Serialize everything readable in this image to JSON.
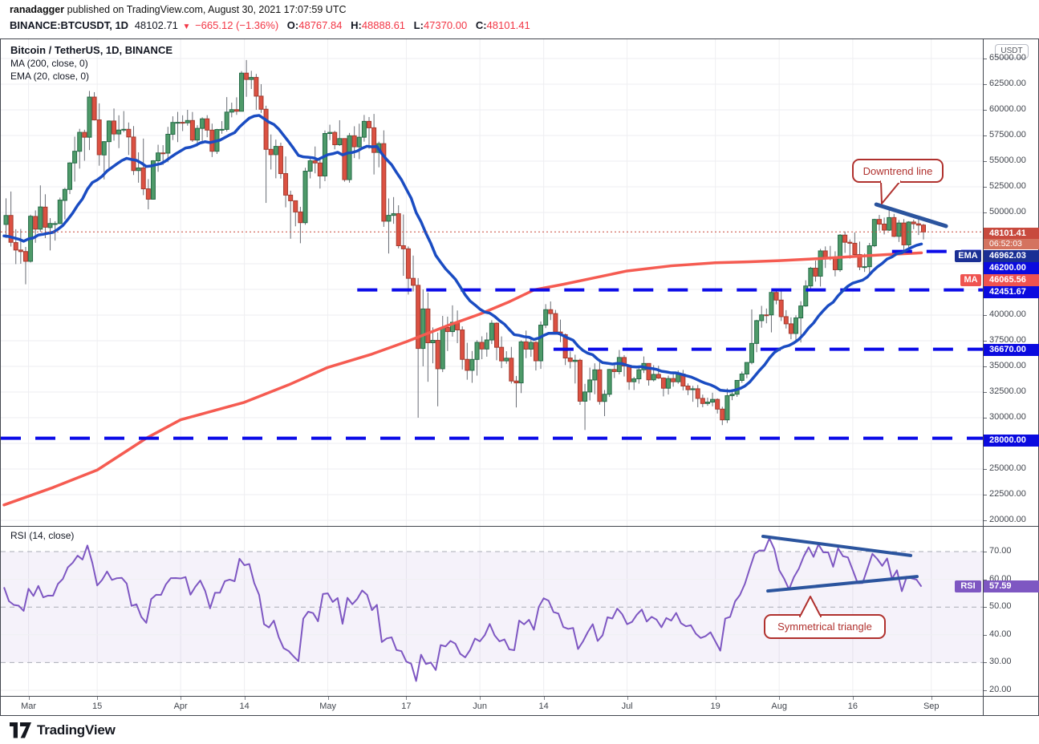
{
  "header": {
    "author": "ranadagger",
    "published": "published on TradingView.com, August 30, 2021 17:07:59 UTC",
    "symbol": "BINANCE:BTCUSDT, 1D",
    "last": "48102.71",
    "direction": "▼",
    "change": "−665.12 (−1.36%)",
    "open_label": "O:",
    "open": "48767.84",
    "high_label": "H:",
    "high": "48888.61",
    "low_label": "L:",
    "low": "47370.00",
    "close_label": "C:",
    "close": "48101.41"
  },
  "legend": {
    "title": "Bitcoin / TetherUS, 1D, BINANCE",
    "ma": "MA (200, close, 0)",
    "ema": "EMA (20, close, 0)"
  },
  "rsi_panel": {
    "legend": "RSI (14, close)",
    "tag": "RSI",
    "value": "57.59"
  },
  "annotations": {
    "downtrend": "Downtrend line",
    "triangle": "Symmetrical triangle"
  },
  "price_axis": {
    "currency": "USDT"
  },
  "price_labels": {
    "last_price": "48101.41",
    "countdown": "06:52:03",
    "ema_tag": "EMA",
    "ema_value": "46962.03",
    "level_46200": "46200.00",
    "ma_tag": "MA",
    "ma_value": "46065.56",
    "level_42451": "42451.67",
    "level_36670": "36670.00",
    "level_28000": "28000.00",
    "rsi_value": "57.59"
  },
  "footer": {
    "brand": "TradingView"
  },
  "chart_data": {
    "type": "candlestick",
    "title": "Bitcoin / TetherUS, 1D, BINANCE",
    "symbol": "BINANCE:BTCUSDT",
    "interval": "1D",
    "start_date": "2021-02-24",
    "last_price": 48101.41,
    "ema_period": 20,
    "ma_period": 200,
    "rsi": {
      "period": 14,
      "source": "close",
      "last": 57.59,
      "overbought": 70,
      "oversold": 30,
      "ticks": [
        70,
        60,
        50,
        40,
        30,
        20
      ],
      "ylim": [
        17.5,
        78.5
      ]
    },
    "price_axis": {
      "min_visible": 20000,
      "max_visible": 65000,
      "tick_step": 2500,
      "ylim": [
        19400,
        66875
      ]
    },
    "time_axis_labels": [
      {
        "label": "Mar",
        "index": 5
      },
      {
        "label": "15",
        "index": 19
      },
      {
        "label": "Apr",
        "index": 36
      },
      {
        "label": "14",
        "index": 49
      },
      {
        "label": "May",
        "index": 66
      },
      {
        "label": "17",
        "index": 82
      },
      {
        "label": "Jun",
        "index": 97
      },
      {
        "label": "14",
        "index": 110
      },
      {
        "label": "Jul",
        "index": 127
      },
      {
        "label": "19",
        "index": 145
      },
      {
        "label": "Aug",
        "index": 158
      },
      {
        "label": "16",
        "index": 173
      },
      {
        "label": "Sep",
        "index": 189
      }
    ],
    "horizontal_levels": [
      {
        "price": 46200,
        "from_index": 181
      },
      {
        "price": 42451.67,
        "from_index": 72
      },
      {
        "price": 36670,
        "from_index": 112
      },
      {
        "price": 28000,
        "from_index": -2
      }
    ],
    "drawings": {
      "downtrend_line": {
        "x1_index": 177.8,
        "price1": 50780,
        "x2_index": 192,
        "price2": 48670
      },
      "rsi_upper_trendline": {
        "x1_index": 154.7,
        "v1": 75.5,
        "x2_index": 184.8,
        "v2": 68.6
      },
      "rsi_lower_trendline": {
        "x1_index": 155.7,
        "v1": 55.8,
        "x2_index": 186.1,
        "v2": 61.0
      }
    },
    "ma200_anchors": [
      [
        0,
        21500
      ],
      [
        10,
        23200
      ],
      [
        19,
        24900
      ],
      [
        29,
        28000
      ],
      [
        36,
        29800
      ],
      [
        49,
        31500
      ],
      [
        58,
        33200
      ],
      [
        66,
        34900
      ],
      [
        75,
        36200
      ],
      [
        82,
        37400
      ],
      [
        90,
        38900
      ],
      [
        97,
        40100
      ],
      [
        103,
        41300
      ],
      [
        108,
        42450
      ],
      [
        114,
        43000
      ],
      [
        120,
        43600
      ],
      [
        127,
        44300
      ],
      [
        136,
        44800
      ],
      [
        145,
        45100
      ],
      [
        152,
        45200
      ],
      [
        158,
        45300
      ],
      [
        166,
        45500
      ],
      [
        173,
        45700
      ],
      [
        180,
        45900
      ],
      [
        187,
        46066
      ]
    ],
    "candles": [
      [
        48835,
        51374,
        47522,
        49705
      ],
      [
        49709,
        52041,
        46674,
        47093
      ],
      [
        47063,
        48370,
        44967,
        46339
      ],
      [
        46340,
        48394,
        45000,
        46188
      ],
      [
        46194,
        46638,
        43000,
        45240
      ],
      [
        45240,
        49784,
        45115,
        49631
      ],
      [
        49612,
        50200,
        47047,
        48378
      ],
      [
        48374,
        52640,
        48100,
        50538
      ],
      [
        50522,
        51773,
        47500,
        48561
      ],
      [
        48527,
        49448,
        46300,
        48927
      ],
      [
        48899,
        49147,
        47257,
        48912
      ],
      [
        48918,
        51450,
        48909,
        51206
      ],
      [
        51174,
        52402,
        49328,
        52246
      ],
      [
        52246,
        54895,
        51789,
        54824
      ],
      [
        54824,
        57387,
        53005,
        55963
      ],
      [
        55963,
        58150,
        54272,
        57805
      ],
      [
        57805,
        58063,
        55040,
        57332
      ],
      [
        57332,
        61844,
        56078,
        61243
      ],
      [
        61243,
        61724,
        58966,
        59018
      ],
      [
        59018,
        60633,
        54555,
        55629
      ],
      [
        55605,
        56950,
        53221,
        56900
      ],
      [
        56900,
        58974,
        54123,
        58912
      ],
      [
        58912,
        60129,
        57000,
        57648
      ],
      [
        57648,
        59468,
        56270,
        58030
      ],
      [
        58030,
        59880,
        57820,
        58102
      ],
      [
        58102,
        58767,
        55601,
        57358
      ],
      [
        57351,
        58419,
        53650,
        54083
      ],
      [
        54083,
        55858,
        52900,
        54340
      ],
      [
        54340,
        57200,
        51686,
        52302
      ],
      [
        52302,
        53250,
        50305,
        51293
      ],
      [
        51293,
        55100,
        51250,
        55033
      ],
      [
        55033,
        56600,
        53962,
        55801
      ],
      [
        55801,
        56559,
        54630,
        55778
      ],
      [
        55778,
        58342,
        54900,
        57619
      ],
      [
        57619,
        59368,
        57055,
        58771
      ],
      [
        58771,
        59800,
        56855,
        58779
      ],
      [
        58779,
        59469,
        57930,
        58735
      ],
      [
        58735,
        60000,
        58464,
        58960
      ],
      [
        58960,
        59790,
        56880,
        57058
      ],
      [
        57058,
        58500,
        56450,
        58192
      ],
      [
        58192,
        59272,
        56828,
        59123
      ],
      [
        59123,
        59480,
        57333,
        58025
      ],
      [
        58025,
        58656,
        55400,
        55963
      ],
      [
        55963,
        58150,
        55700,
        58083
      ],
      [
        58083,
        58900,
        57667,
        58096
      ],
      [
        58096,
        61240,
        57900,
        59778
      ],
      [
        59778,
        60700,
        59269,
        60020
      ],
      [
        60020,
        61219,
        59510,
        59863
      ],
      [
        59863,
        63777,
        59853,
        63576
      ],
      [
        63576,
        64854,
        61270,
        62959
      ],
      [
        62959,
        63800,
        62030,
        63159
      ],
      [
        63159,
        63500,
        60000,
        61334
      ],
      [
        61334,
        62500,
        59700,
        60058
      ],
      [
        60058,
        60400,
        50931,
        56150
      ],
      [
        56150,
        57600,
        54187,
        55633
      ],
      [
        55633,
        57100,
        53329,
        56436
      ],
      [
        56436,
        56800,
        53300,
        53787
      ],
      [
        53787,
        55459,
        50500,
        51690
      ],
      [
        51690,
        52120,
        47440,
        51139
      ],
      [
        51139,
        51167,
        48650,
        50050
      ],
      [
        50050,
        50550,
        47000,
        49004
      ],
      [
        49004,
        54356,
        48800,
        54021
      ],
      [
        54021,
        55440,
        53319,
        55033
      ],
      [
        55033,
        56428,
        53813,
        54824
      ],
      [
        54824,
        55195,
        52330,
        53555
      ],
      [
        53555,
        57990,
        53050,
        57694
      ],
      [
        57694,
        58550,
        57050,
        57800
      ],
      [
        57800,
        57952,
        56150,
        56600
      ],
      [
        56600,
        58986,
        56483,
        57200
      ],
      [
        57200,
        57215,
        53000,
        53200
      ],
      [
        53200,
        57750,
        52900,
        57473
      ],
      [
        57473,
        58400,
        55300,
        56400
      ],
      [
        56400,
        58650,
        55200,
        57332
      ],
      [
        57332,
        59500,
        56900,
        58877
      ],
      [
        58877,
        59300,
        56216,
        58250
      ],
      [
        58250,
        59600,
        53700,
        55847
      ],
      [
        55847,
        56900,
        54400,
        56704
      ],
      [
        56704,
        58000,
        48600,
        49150
      ],
      [
        49150,
        51367,
        46000,
        49716
      ],
      [
        49716,
        51500,
        48896,
        49880
      ],
      [
        49880,
        50700,
        46500,
        46760
      ],
      [
        46760,
        49800,
        43825,
        46456
      ],
      [
        46456,
        46686,
        42001,
        43580
      ],
      [
        43580,
        45800,
        42300,
        42900
      ],
      [
        42900,
        43600,
        30000,
        36750
      ],
      [
        36750,
        42500,
        35000,
        40596
      ],
      [
        40596,
        42200,
        33500,
        37304
      ],
      [
        37304,
        38800,
        35300,
        37536
      ],
      [
        37536,
        38300,
        31111,
        34770
      ],
      [
        34770,
        39920,
        34445,
        38796
      ],
      [
        38796,
        39850,
        36500,
        38392
      ],
      [
        38392,
        40950,
        37900,
        39294
      ],
      [
        39294,
        40450,
        37263,
        38556
      ],
      [
        38556,
        38900,
        34700,
        35684
      ],
      [
        35684,
        37300,
        33700,
        34616
      ],
      [
        34616,
        36500,
        33400,
        35678
      ],
      [
        35678,
        37550,
        34100,
        37341
      ],
      [
        37341,
        37930,
        35700,
        36694
      ],
      [
        36694,
        38300,
        35945,
        37575
      ],
      [
        37575,
        39500,
        37180,
        39208
      ],
      [
        39208,
        39290,
        35600,
        36860
      ],
      [
        36860,
        37920,
        34833,
        35538
      ],
      [
        35538,
        36480,
        35258,
        35798
      ],
      [
        35798,
        36900,
        33333,
        33577
      ],
      [
        33577,
        34068,
        31000,
        33393
      ],
      [
        33393,
        37534,
        32400,
        37388
      ],
      [
        37388,
        38490,
        35800,
        36680
      ],
      [
        36680,
        37680,
        35936,
        37338
      ],
      [
        37338,
        37451,
        34600,
        35546
      ],
      [
        35546,
        39380,
        34757,
        39020
      ],
      [
        39020,
        41064,
        38730,
        40525
      ],
      [
        40525,
        41330,
        39506,
        40144
      ],
      [
        40144,
        40500,
        38116,
        38349
      ],
      [
        38349,
        39559,
        37365,
        38092
      ],
      [
        38092,
        38202,
        35129,
        35819
      ],
      [
        35819,
        36457,
        34803,
        35483
      ],
      [
        35483,
        36138,
        33336,
        35600
      ],
      [
        35600,
        35750,
        31251,
        31608
      ],
      [
        31608,
        33298,
        28805,
        32509
      ],
      [
        32509,
        34881,
        31683,
        33678
      ],
      [
        33678,
        35297,
        32286,
        34663
      ],
      [
        34663,
        35500,
        31275,
        31584
      ],
      [
        31584,
        32700,
        30151,
        32283
      ],
      [
        32283,
        34749,
        32021,
        34700
      ],
      [
        34700,
        35301,
        33862,
        34494
      ],
      [
        34494,
        36600,
        34225,
        35867
      ],
      [
        35867,
        36100,
        34017,
        35041
      ],
      [
        35041,
        35053,
        32711,
        33504
      ],
      [
        33504,
        33980,
        32699,
        33786
      ],
      [
        33786,
        34945,
        33316,
        34669
      ],
      [
        34669,
        35967,
        34357,
        35287
      ],
      [
        35287,
        35290,
        33125,
        33690
      ],
      [
        33690,
        35118,
        33532,
        34220
      ],
      [
        34220,
        35067,
        33777,
        33862
      ],
      [
        33862,
        33929,
        32077,
        32875
      ],
      [
        32875,
        34100,
        32261,
        33815
      ],
      [
        33815,
        34262,
        33022,
        33502
      ],
      [
        33502,
        34600,
        33311,
        34258
      ],
      [
        34258,
        34656,
        32658,
        33086
      ],
      [
        33086,
        33340,
        32202,
        32729
      ],
      [
        32729,
        33114,
        31550,
        32820
      ],
      [
        32820,
        33185,
        31020,
        31880
      ],
      [
        31880,
        32249,
        31018,
        31383
      ],
      [
        31383,
        31955,
        31164,
        31520
      ],
      [
        31520,
        32435,
        31108,
        31783
      ],
      [
        31783,
        31886,
        30407,
        30839
      ],
      [
        30839,
        31063,
        29278,
        29790
      ],
      [
        29790,
        32858,
        29482,
        32144
      ],
      [
        32144,
        32591,
        31708,
        32287
      ],
      [
        32287,
        33650,
        32030,
        33634
      ],
      [
        33634,
        34500,
        33401,
        34258
      ],
      [
        34258,
        35398,
        33851,
        35381
      ],
      [
        35381,
        40550,
        35205,
        37237
      ],
      [
        37237,
        39542,
        36383,
        39457
      ],
      [
        39457,
        40900,
        38772,
        40019
      ],
      [
        40019,
        40640,
        39200,
        40016
      ],
      [
        40016,
        42316,
        38313,
        42206
      ],
      [
        42206,
        42414,
        41050,
        41461
      ],
      [
        41461,
        42599,
        39422,
        39849
      ],
      [
        39849,
        40480,
        38690,
        39147
      ],
      [
        39147,
        39780,
        37642,
        38207
      ],
      [
        38207,
        39978,
        37508,
        39723
      ],
      [
        39723,
        41350,
        37332,
        40888
      ],
      [
        40888,
        43392,
        40810,
        42836
      ],
      [
        42836,
        44700,
        42446,
        44572
      ],
      [
        44572,
        45310,
        43261,
        43792
      ],
      [
        43792,
        46454,
        42779,
        46253
      ],
      [
        46253,
        46690,
        44589,
        45584
      ],
      [
        45584,
        46743,
        45335,
        45593
      ],
      [
        45593,
        46218,
        43770,
        44417
      ],
      [
        44417,
        47886,
        44217,
        47793
      ],
      [
        47793,
        48144,
        46056,
        47096
      ],
      [
        47096,
        47372,
        45500,
        46999
      ],
      [
        46999,
        48053,
        45660,
        45901
      ],
      [
        45901,
        47160,
        44376,
        44686
      ],
      [
        44686,
        46000,
        44203,
        44714
      ],
      [
        44714,
        47033,
        43927,
        46753
      ],
      [
        46753,
        49382,
        46622,
        49322
      ],
      [
        49322,
        49757,
        48222,
        48869
      ],
      [
        48869,
        49500,
        47858,
        48280
      ],
      [
        48280,
        50500,
        48200,
        49500
      ],
      [
        49500,
        49860,
        47600,
        47674
      ],
      [
        47674,
        49264,
        47126,
        48973
      ],
      [
        48973,
        49352,
        46250,
        46843
      ],
      [
        46843,
        49149,
        46348,
        49069
      ],
      [
        49069,
        49299,
        48370,
        48895
      ],
      [
        48895,
        49650,
        47800,
        48767
      ],
      [
        48768,
        48889,
        47370,
        48101
      ]
    ]
  }
}
